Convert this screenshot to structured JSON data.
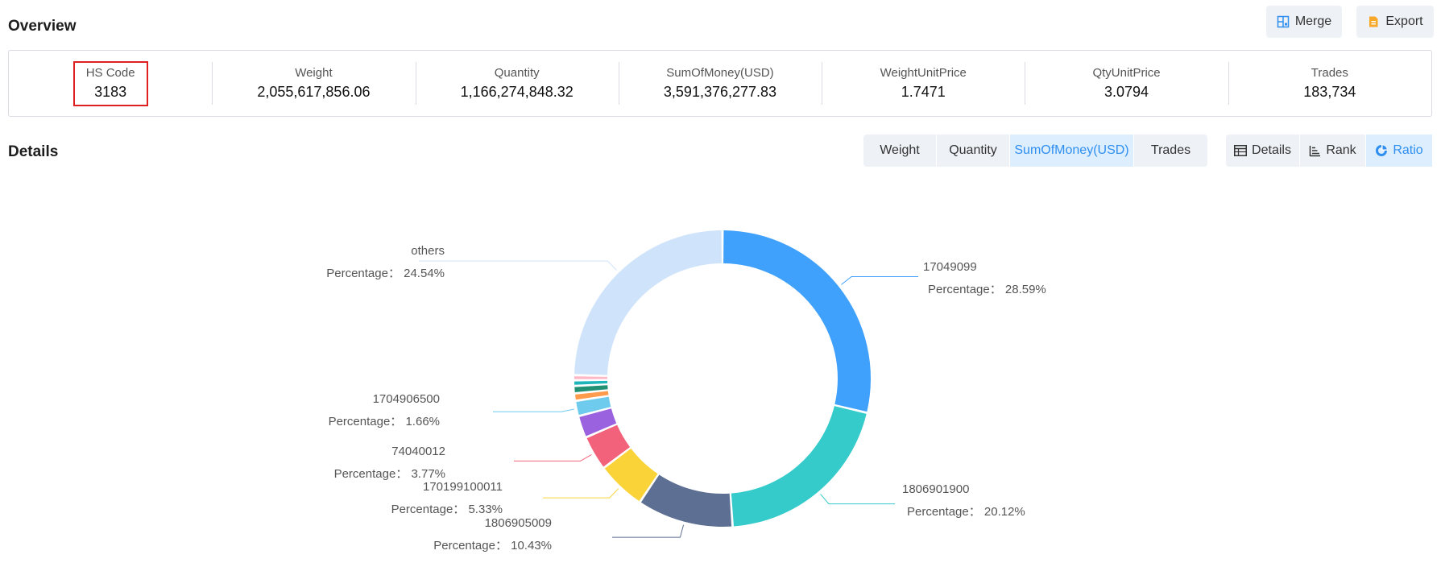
{
  "overview": {
    "title": "Overview",
    "merge_label": "Merge",
    "export_label": "Export",
    "stats": [
      {
        "label": "HS Code",
        "value": "3183"
      },
      {
        "label": "Weight",
        "value": "2,055,617,856.06"
      },
      {
        "label": "Quantity",
        "value": "1,166,274,848.32"
      },
      {
        "label": "SumOfMoney(USD)",
        "value": "3,591,376,277.83"
      },
      {
        "label": "WeightUnitPrice",
        "value": "1.7471"
      },
      {
        "label": "QtyUnitPrice",
        "value": "3.0794"
      },
      {
        "label": "Trades",
        "value": "183,734"
      }
    ]
  },
  "details": {
    "title": "Details",
    "metric_tabs": [
      {
        "label": "Weight",
        "active": false
      },
      {
        "label": "Quantity",
        "active": false
      },
      {
        "label": "SumOfMoney(USD)",
        "active": true
      },
      {
        "label": "Trades",
        "active": false
      }
    ],
    "view_tabs": [
      {
        "label": "Details",
        "icon": "table-icon",
        "active": false
      },
      {
        "label": "Rank",
        "icon": "rank-icon",
        "active": false
      },
      {
        "label": "Ratio",
        "icon": "ratio-icon",
        "active": true
      }
    ]
  },
  "chart_data": {
    "type": "pie",
    "variant": "donut",
    "slices": [
      {
        "name": "17049099",
        "percent": 28.59,
        "color": "#3fa1fb",
        "label": "Percentage： 28.59%"
      },
      {
        "name": "1806901900",
        "percent": 20.12,
        "color": "#36cbcb",
        "label": "Percentage： 20.12%"
      },
      {
        "name": "1806905009",
        "percent": 10.43,
        "color": "#5d6f92",
        "label": "Percentage： 10.43%"
      },
      {
        "name": "170199100011",
        "percent": 5.33,
        "color": "#f9d337",
        "label": "Percentage： 5.33%"
      },
      {
        "name": "74040012",
        "percent": 3.77,
        "color": "#f2637b",
        "label": "Percentage： 3.77%"
      },
      {
        "name": "",
        "percent": 2.4,
        "color": "#9b62df",
        "label": ""
      },
      {
        "name": "1704906500",
        "percent": 1.66,
        "color": "#6fcbee",
        "label": "Percentage： 1.66%"
      },
      {
        "name": "",
        "percent": 0.8,
        "color": "#ff9b4d",
        "label": ""
      },
      {
        "name": "",
        "percent": 0.8,
        "color": "#229073",
        "label": ""
      },
      {
        "name": "",
        "percent": 0.6,
        "color": "#1eb6bb",
        "label": ""
      },
      {
        "name": "",
        "percent": 0.55,
        "color": "#ffb8c6",
        "label": ""
      },
      {
        "name": "others",
        "percent": 24.54,
        "color": "#cfe4fb",
        "label": "Percentage： 24.54%"
      }
    ]
  }
}
